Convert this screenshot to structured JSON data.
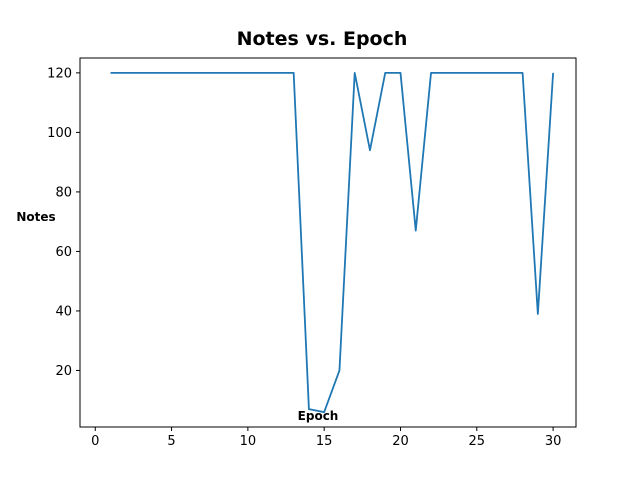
{
  "chart_data": {
    "type": "line",
    "title": "Notes vs. Epoch",
    "xlabel": "Epoch",
    "ylabel": "Notes",
    "xlim": [
      -1,
      31.5
    ],
    "ylim": [
      1,
      125
    ],
    "x_ticks": [
      0,
      5,
      10,
      15,
      20,
      25,
      30
    ],
    "y_ticks": [
      20,
      40,
      60,
      80,
      100,
      120
    ],
    "grid": false,
    "series": [
      {
        "color": "#1f77b4",
        "x": [
          1,
          2,
          3,
          4,
          5,
          6,
          7,
          8,
          9,
          10,
          11,
          12,
          13,
          14,
          15,
          16,
          17,
          18,
          19,
          20,
          21,
          22,
          23,
          24,
          25,
          26,
          27,
          28,
          29,
          30
        ],
        "y": [
          120,
          120,
          120,
          120,
          120,
          120,
          120,
          120,
          120,
          120,
          120,
          120,
          120,
          7,
          6,
          20,
          120,
          94,
          120,
          120,
          67,
          120,
          120,
          120,
          120,
          120,
          120,
          120,
          39,
          120
        ]
      }
    ]
  }
}
